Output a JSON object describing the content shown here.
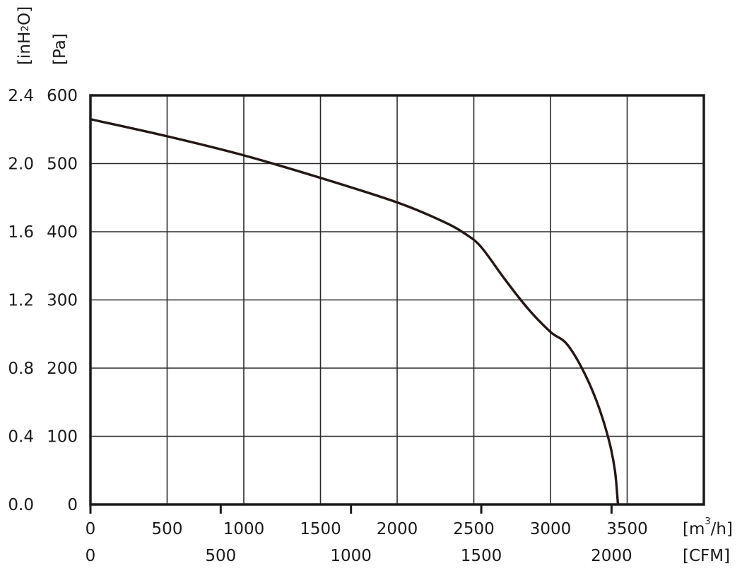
{
  "chart_data": {
    "type": "line",
    "title": "",
    "y_axes": [
      {
        "unit": "[Pa]",
        "ticks": [
          0,
          100,
          200,
          300,
          400,
          500,
          600
        ],
        "ylim": [
          0,
          600
        ]
      },
      {
        "unit_main": "[inH",
        "unit_sub": "2",
        "unit_end": "O]",
        "ticks": [
          "0.0",
          "0.4",
          "0.8",
          "1.2",
          "1.6",
          "2.0",
          "2.4"
        ]
      }
    ],
    "x_axes": [
      {
        "unit_main": "[m",
        "unit_sup": "3",
        "unit_end": "/h]",
        "ticks": [
          0,
          500,
          1000,
          1500,
          2000,
          2500,
          3000,
          3500
        ],
        "xlim": [
          0,
          4000
        ]
      },
      {
        "unit": "[CFM]",
        "ticks": [
          0,
          500,
          1000,
          1500,
          2000
        ]
      }
    ],
    "grid": true,
    "series": [
      {
        "color": "#231815",
        "points": [
          [
            0,
            565
          ],
          [
            500,
            540
          ],
          [
            1000,
            512
          ],
          [
            1500,
            479
          ],
          [
            2000,
            443
          ],
          [
            2300,
            415
          ],
          [
            2450,
            396
          ],
          [
            2550,
            377
          ],
          [
            2700,
            331
          ],
          [
            2850,
            288
          ],
          [
            3000,
            253
          ],
          [
            3100,
            237
          ],
          [
            3200,
            202
          ],
          [
            3300,
            152
          ],
          [
            3380,
            95
          ],
          [
            3420,
            50
          ],
          [
            3440,
            0
          ]
        ]
      }
    ]
  }
}
